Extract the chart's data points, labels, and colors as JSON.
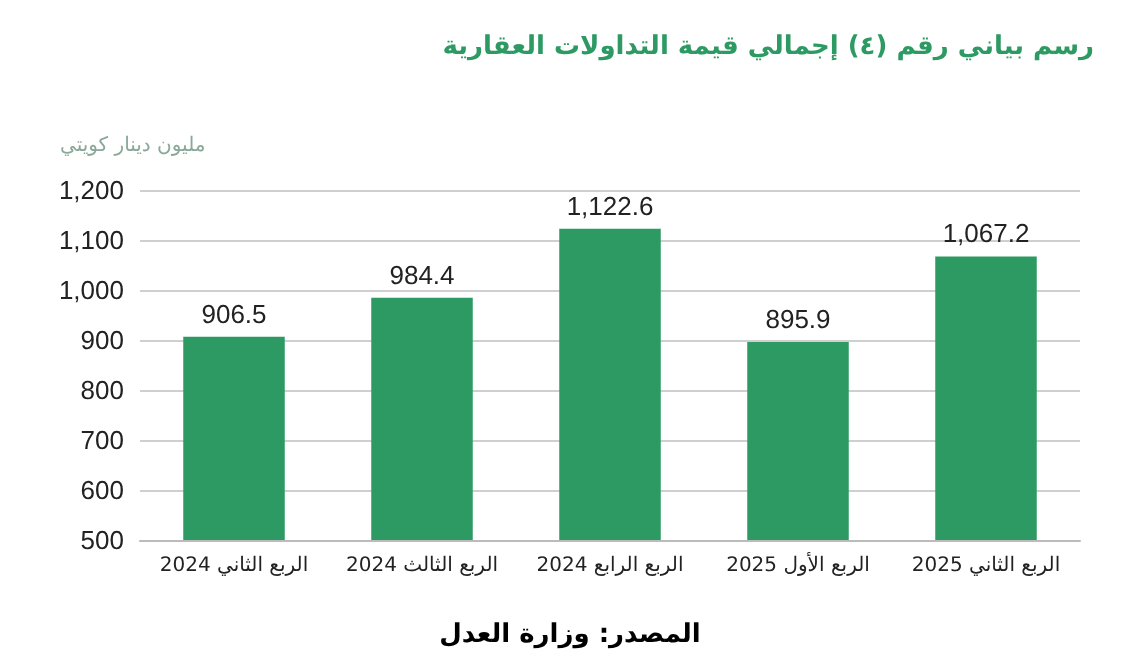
{
  "chart_data": {
    "type": "bar",
    "title": "رسم بياني رقم (٤) إجمالي قيمة التداولات العقارية",
    "ylabel": "مليون دينار كويتي",
    "categories": [
      "الربع الثاني 2024",
      "الربع الثالث 2024",
      "الربع الرابع 2024",
      "الربع الأول 2025",
      "الربع الثاني 2025"
    ],
    "values": [
      906.5,
      984.4,
      1122.6,
      895.9,
      1067.2
    ],
    "color": "#2e9a63",
    "value_labels": [
      "906.5",
      "984.4",
      "1,122.6",
      "895.9",
      "1,067.2"
    ],
    "ylim": [
      500,
      1200
    ],
    "yticks": [
      500,
      600,
      700,
      800,
      900,
      {
        "value": 1000,
        "label": "1,000"
      },
      {
        "value": 1100,
        "label": "1,100"
      },
      {
        "value": 1200,
        "label": "1,200"
      }
    ],
    "grid": "y",
    "annotations": [
      "المصدر: وزارة العدل"
    ]
  }
}
